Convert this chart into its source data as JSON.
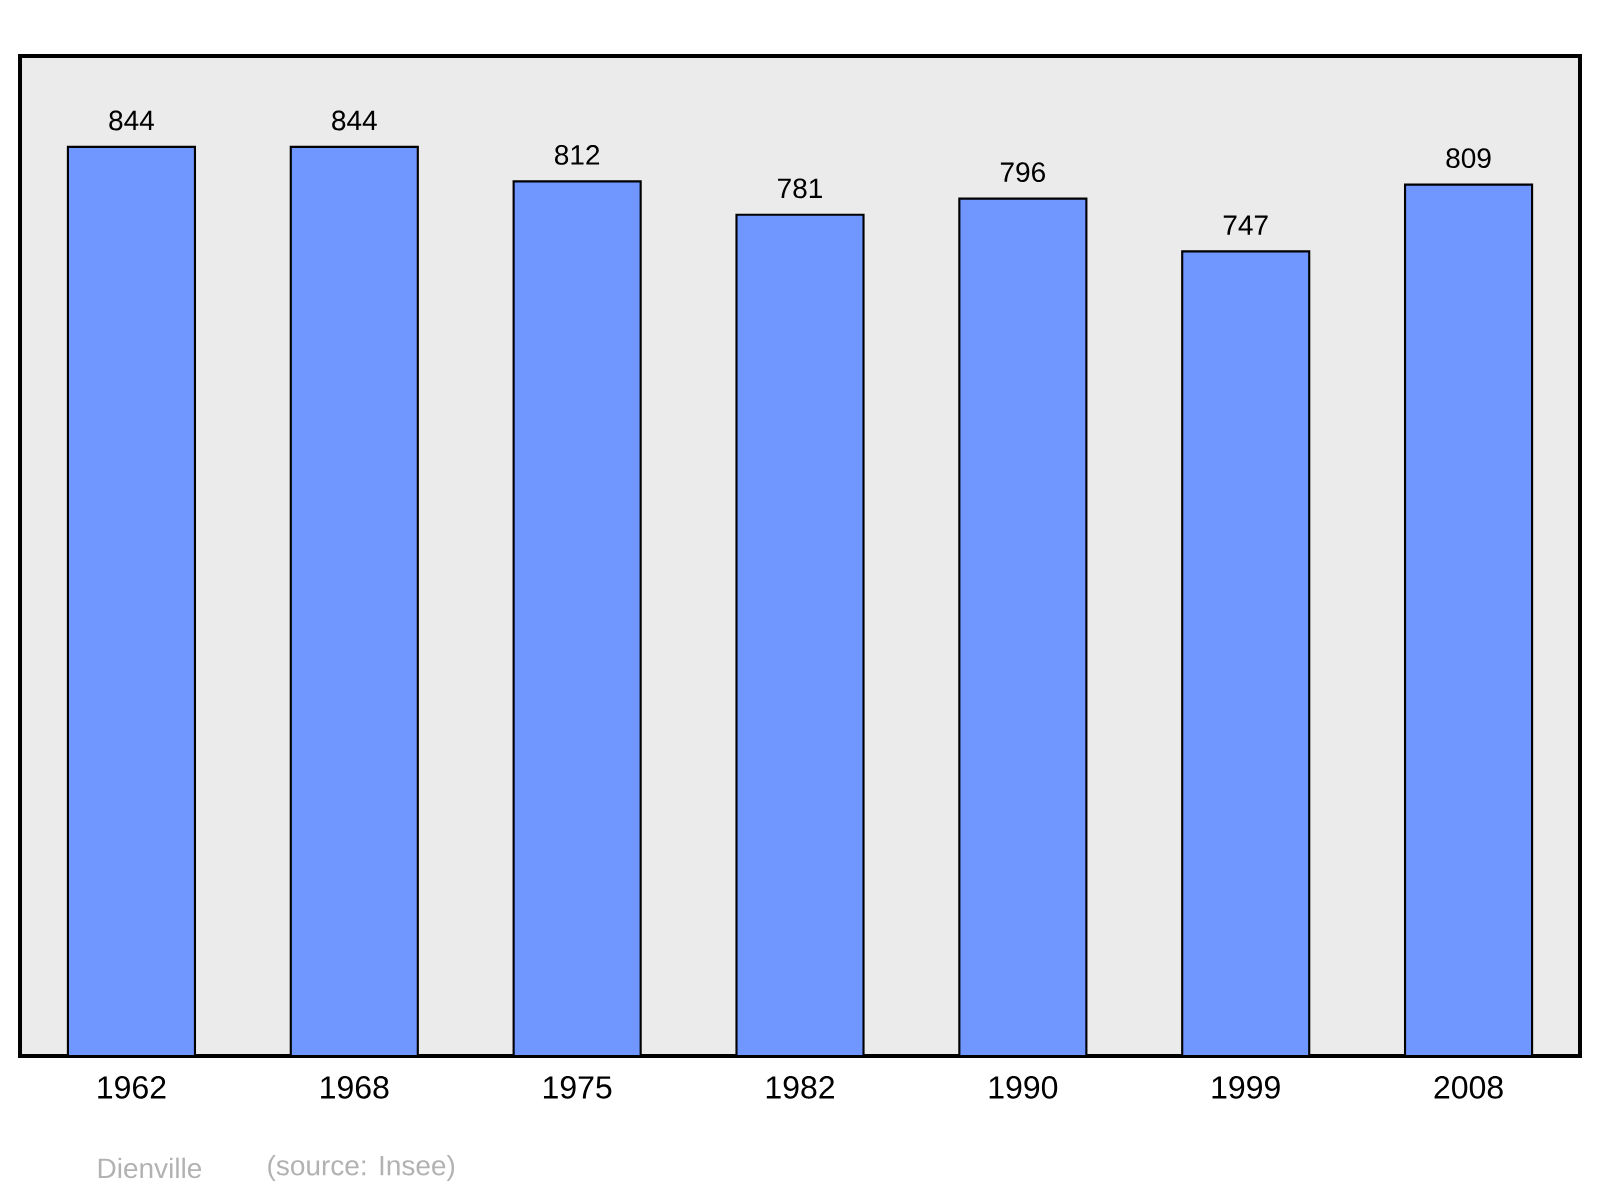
{
  "chart_data": {
    "type": "bar",
    "categories": [
      "1962",
      "1968",
      "1975",
      "1982",
      "1990",
      "1999",
      "2008"
    ],
    "values": [
      844,
      844,
      812,
      781,
      796,
      747,
      809
    ],
    "color": "#7096ff",
    "data_labels": true,
    "annotations": [
      "Dienville",
      "(source: Insee)"
    ]
  }
}
